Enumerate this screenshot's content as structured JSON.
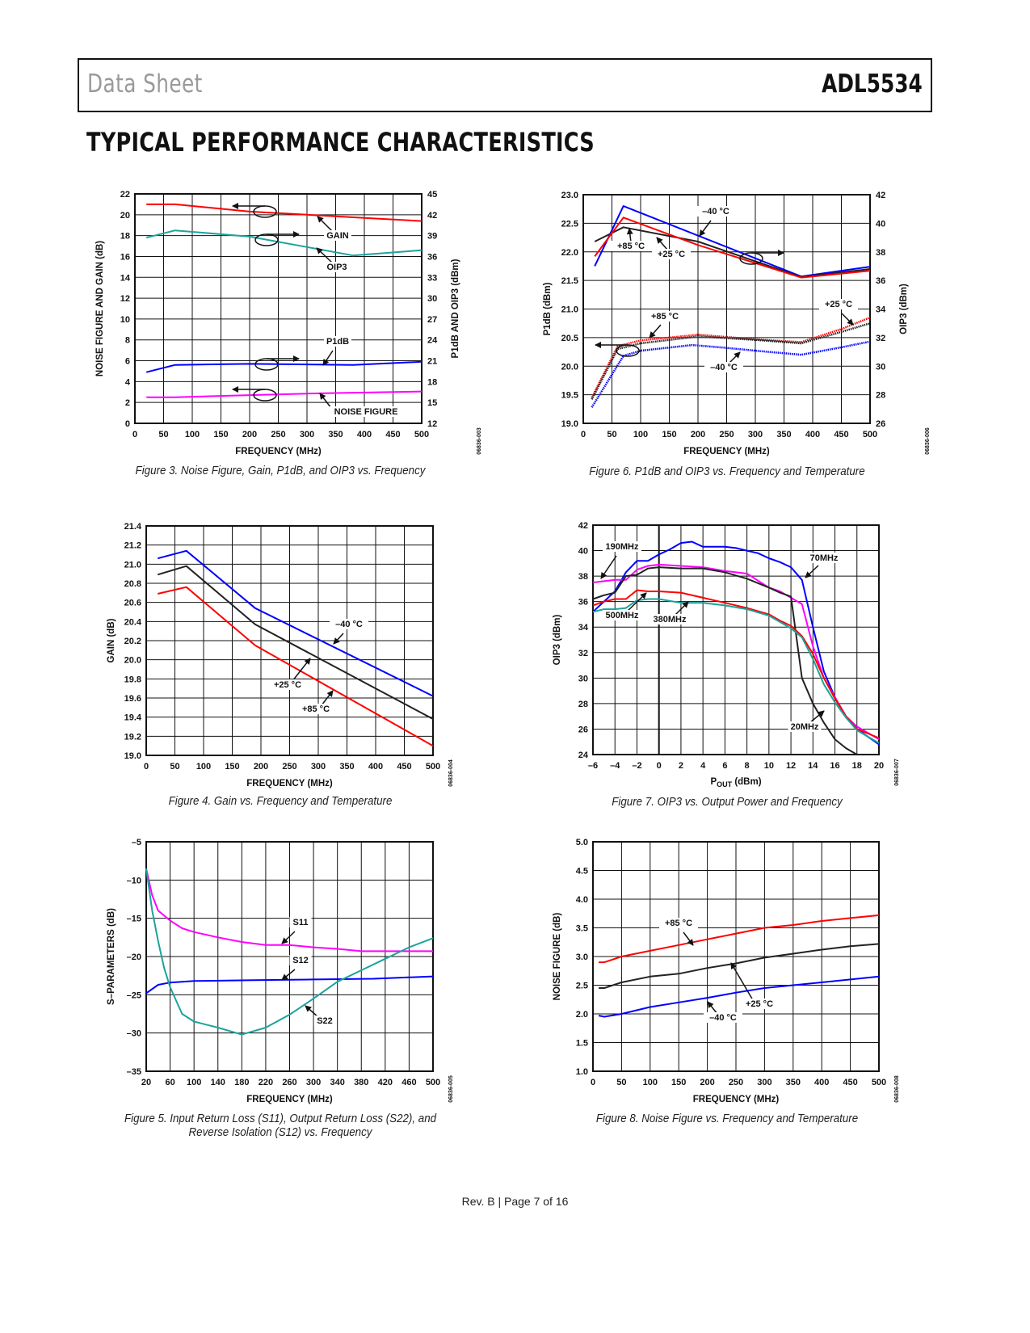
{
  "header": {
    "left": "Data Sheet",
    "right": "ADL5534"
  },
  "section_title": "TYPICAL PERFORMANCE CHARACTERISTICS",
  "footer": "Rev. B | Page 7 of 16",
  "colors": {
    "red": "#ff0000",
    "blue": "#0000ff",
    "teal": "#1ba39c",
    "magenta": "#ff00ff",
    "black": "#222222"
  },
  "chart_data": [
    {
      "type": "line",
      "caption": "Figure 3. Noise Figure, Gain, P1dB, and OIP3 vs. Frequency",
      "code": "06836-003",
      "xlabel": "FREQUENCY (MHz)",
      "ylabel": "NOISE FIGURE AND GAIN (dB)",
      "ylabel_right": "P1dB AND OIP3 (dBm)",
      "xlim": [
        0,
        500
      ],
      "ylim": [
        0,
        22
      ],
      "ylim_right": [
        12,
        45
      ],
      "xticks": [
        "0",
        "50",
        "100",
        "150",
        "200",
        "250",
        "300",
        "350",
        "400",
        "450",
        "500"
      ],
      "yticks": [
        "0",
        "2",
        "4",
        "6",
        "8",
        "10",
        "12",
        "14",
        "16",
        "18",
        "20",
        "22"
      ],
      "yticks_right": [
        "12",
        "15",
        "18",
        "21",
        "24",
        "27",
        "30",
        "33",
        "36",
        "39",
        "42",
        "45"
      ],
      "grid": true,
      "annotations": [
        "GAIN",
        "OIP3",
        "P1dB",
        "NOISE FIGURE"
      ],
      "series": [
        {
          "name": "GAIN",
          "axis": "left",
          "color": "#ff0000",
          "x": [
            20,
            70,
            200,
            300,
            400,
            500
          ],
          "y": [
            21,
            21,
            20.3,
            20,
            19.7,
            19.4
          ]
        },
        {
          "name": "OIP3",
          "axis": "right",
          "color": "#1ba39c",
          "x": [
            20,
            70,
            200,
            300,
            380,
            500
          ],
          "y": [
            38.7,
            39.75,
            38.85,
            37.35,
            36.15,
            36.9
          ]
        },
        {
          "name": "P1dB",
          "axis": "right",
          "color": "#0000ff",
          "x": [
            20,
            70,
            200,
            380,
            500
          ],
          "y": [
            19.35,
            20.4,
            20.55,
            20.4,
            20.85
          ]
        },
        {
          "name": "NOISE FIGURE",
          "axis": "left",
          "color": "#ff00ff",
          "x": [
            20,
            70,
            200,
            300,
            400,
            500
          ],
          "y": [
            2.5,
            2.5,
            2.7,
            2.85,
            2.95,
            3.05
          ]
        }
      ]
    },
    {
      "type": "line",
      "caption": "Figure 6. P1dB and OIP3 vs. Frequency and Temperature",
      "code": "06836-006",
      "xlabel": "FREQUENCY (MHz)",
      "ylabel": "P1dB (dBm)",
      "ylabel_right": "OIP3 (dBm)",
      "xlim": [
        0,
        500
      ],
      "ylim": [
        19,
        23
      ],
      "ylim_right": [
        26,
        42
      ],
      "xticks": [
        "0",
        "50",
        "100",
        "150",
        "200",
        "250",
        "300",
        "350",
        "400",
        "450",
        "500"
      ],
      "yticks": [
        "19.0",
        "19.5",
        "20.0",
        "20.5",
        "21.0",
        "21.5",
        "22.0",
        "22.5",
        "23.0"
      ],
      "yticks_right": [
        "26",
        "28",
        "30",
        "32",
        "34",
        "36",
        "38",
        "40",
        "42"
      ],
      "grid": true,
      "annotations": [
        "–40 °C",
        "+85 °C",
        "+25 °C",
        "+85 °C",
        "+25 °C",
        "–40 °C"
      ],
      "series": [
        {
          "name": "OIP3 –40°C",
          "axis": "right",
          "color": "#0000ff",
          "style": "solid",
          "x": [
            20,
            70,
            380,
            500
          ],
          "y": [
            37.0,
            41.2,
            36.28,
            36.96
          ]
        },
        {
          "name": "OIP3 +25°C",
          "axis": "right",
          "color": "#222222",
          "style": "solid",
          "x": [
            20,
            70,
            200,
            380,
            500
          ],
          "y": [
            38.72,
            39.72,
            38.72,
            36.24,
            36.8
          ]
        },
        {
          "name": "OIP3 +85°C",
          "axis": "right",
          "color": "#ff0000",
          "style": "solid",
          "x": [
            20,
            70,
            200,
            380,
            500
          ],
          "y": [
            37.68,
            40.4,
            38.48,
            36.2,
            36.68
          ]
        },
        {
          "name": "P1dB +85°C",
          "axis": "left",
          "color": "#ff0000",
          "style": "dotted",
          "x": [
            15,
            60,
            100,
            200,
            300,
            380,
            450,
            500
          ],
          "y": [
            19.45,
            20.35,
            20.45,
            20.55,
            20.47,
            20.42,
            20.65,
            20.85
          ]
        },
        {
          "name": "P1dB +25°C",
          "axis": "left",
          "color": "#222222",
          "style": "dotted",
          "x": [
            15,
            60,
            100,
            200,
            300,
            380,
            450,
            500
          ],
          "y": [
            19.42,
            20.3,
            20.4,
            20.52,
            20.46,
            20.4,
            20.6,
            20.75
          ]
        },
        {
          "name": "P1dB –40°C",
          "axis": "left",
          "color": "#0000ff",
          "style": "dotted",
          "x": [
            15,
            70,
            100,
            190,
            250,
            300,
            380,
            450,
            500
          ],
          "y": [
            19.28,
            20.18,
            20.27,
            20.37,
            20.32,
            20.27,
            20.2,
            20.33,
            20.43
          ]
        }
      ]
    },
    {
      "type": "line",
      "caption": "Figure 4. Gain vs. Frequency and Temperature",
      "code": "06836-004",
      "xlabel": "FREQUENCY (MHz)",
      "ylabel": "GAIN (dB)",
      "xlim": [
        0,
        500
      ],
      "ylim": [
        19.0,
        21.4
      ],
      "xticks": [
        "0",
        "50",
        "100",
        "150",
        "200",
        "250",
        "300",
        "350",
        "400",
        "450",
        "500"
      ],
      "yticks": [
        "19.0",
        "19.2",
        "19.4",
        "19.6",
        "19.8",
        "20.0",
        "20.2",
        "20.4",
        "20.6",
        "20.8",
        "21.0",
        "21.2",
        "21.4"
      ],
      "grid": true,
      "annotations": [
        "–40 °C",
        "+25 °C",
        "+85 °C"
      ],
      "series": [
        {
          "name": "–40°C",
          "color": "#0000ff",
          "x": [
            20,
            70,
            190,
            500
          ],
          "y": [
            21.06,
            21.14,
            20.54,
            19.62
          ]
        },
        {
          "name": "+25°C",
          "color": "#222222",
          "x": [
            20,
            70,
            190,
            500
          ],
          "y": [
            20.89,
            20.98,
            20.37,
            19.38
          ]
        },
        {
          "name": "+85°C",
          "color": "#ff0000",
          "x": [
            20,
            70,
            190,
            500
          ],
          "y": [
            20.69,
            20.76,
            20.15,
            19.1
          ]
        }
      ]
    },
    {
      "type": "line",
      "caption": "Figure 7. OIP3 vs. Output Power and Frequency",
      "code": "06836-007",
      "xlabel_parts": {
        "main": "P",
        "sub": "OUT",
        "unit": " (dBm)"
      },
      "ylabel": "OIP3 (dBm)",
      "xlim": [
        -6,
        20
      ],
      "ylim": [
        24,
        42
      ],
      "xticks": [
        "–6",
        "–4",
        "–2",
        "0",
        "2",
        "4",
        "6",
        "8",
        "10",
        "12",
        "14",
        "16",
        "18",
        "20"
      ],
      "yticks": [
        "24",
        "26",
        "28",
        "30",
        "32",
        "34",
        "36",
        "38",
        "40",
        "42"
      ],
      "grid": true,
      "annotations": [
        "190MHz",
        "70MHz",
        "500MHz",
        "380MHz",
        "20MHz"
      ],
      "series": [
        {
          "name": "70MHz",
          "color": "#0000ff",
          "x": [
            -6,
            -4,
            -3,
            -2,
            -1,
            0,
            1,
            2,
            3,
            4,
            6,
            7,
            8,
            9,
            10,
            11,
            12,
            13,
            14,
            15,
            16,
            17,
            18,
            20
          ],
          "y": [
            35.2,
            36.8,
            38.3,
            39.2,
            39.2,
            39.7,
            40.1,
            40.6,
            40.7,
            40.3,
            40.3,
            40.2,
            40.0,
            39.8,
            39.4,
            39.1,
            38.7,
            37.7,
            34,
            30.5,
            28.5,
            27,
            26,
            24.8
          ]
        },
        {
          "name": "190MHz",
          "color": "#ff00ff",
          "x": [
            -6,
            -5,
            -4,
            -3,
            -2,
            -1,
            0,
            2,
            4,
            6,
            8,
            10,
            11,
            12,
            13,
            14,
            15,
            16,
            17,
            18,
            20
          ],
          "y": [
            37.5,
            37.6,
            37.7,
            37.7,
            38.5,
            38.8,
            38.9,
            38.8,
            38.7,
            38.4,
            38.2,
            37.1,
            36.8,
            36.3,
            35.8,
            32.5,
            30,
            28.5,
            27,
            26.2,
            25.2
          ]
        },
        {
          "name": "20MHz",
          "color": "#222222",
          "x": [
            -6,
            -5,
            -4,
            -3,
            -2,
            -1,
            0,
            2,
            4,
            6,
            8,
            10,
            11,
            12,
            13,
            14,
            15,
            16,
            17,
            18
          ],
          "y": [
            36.2,
            36.5,
            36.7,
            38,
            38.1,
            38.6,
            38.7,
            38.6,
            38.6,
            38.3,
            37.8,
            37.1,
            36.7,
            36.4,
            30,
            28,
            26.5,
            25.2,
            24.5,
            24
          ]
        },
        {
          "name": "500MHz",
          "color": "#ff0000",
          "x": [
            -6,
            -5,
            -4,
            -3,
            -2,
            -1,
            0,
            2,
            4,
            6,
            8,
            10,
            11,
            12,
            13,
            14,
            15,
            16,
            17,
            18,
            20
          ],
          "y": [
            35.7,
            36.0,
            36.2,
            36.2,
            36.9,
            36.8,
            36.8,
            36.7,
            36.3,
            35.9,
            35.5,
            35.0,
            34.5,
            34.1,
            33.3,
            31.9,
            30,
            28.4,
            27,
            26,
            25.3
          ]
        },
        {
          "name": "380MHz",
          "color": "#1ba39c",
          "x": [
            -6,
            -5,
            -4,
            -3,
            -2,
            -1,
            0,
            2,
            4,
            6,
            8,
            10,
            11,
            12,
            13,
            14,
            15,
            16,
            17,
            18,
            20
          ],
          "y": [
            35.2,
            35.4,
            35.4,
            35.5,
            36.1,
            36.2,
            36.2,
            35.9,
            35.9,
            35.7,
            35.4,
            34.9,
            34.4,
            33.9,
            33.2,
            31.5,
            29.5,
            28.1,
            26.9,
            25.9,
            24.9
          ]
        }
      ]
    },
    {
      "type": "line",
      "caption": "Figure 5. Input Return Loss (S11), Output Return Loss (S22), and Reverse Isolation (S12) vs. Frequency",
      "code": "06836-005",
      "xlabel": "FREQUENCY (MHz)",
      "ylabel": "S–PARAMETERS (dB)",
      "xlim": [
        20,
        500
      ],
      "ylim": [
        -35,
        -5
      ],
      "xticks": [
        "20",
        "60",
        "100",
        "140",
        "180",
        "220",
        "260",
        "300",
        "340",
        "380",
        "420",
        "460",
        "500"
      ],
      "yticks": [
        "–35",
        "–30",
        "–25",
        "–20",
        "–15",
        "–10",
        "–5"
      ],
      "grid": true,
      "annotations": [
        "S11",
        "S12",
        "S22"
      ],
      "series": [
        {
          "name": "S11",
          "color": "#ff00ff",
          "x": [
            20,
            30,
            40,
            60,
            80,
            100,
            140,
            180,
            220,
            260,
            300,
            340,
            380,
            420,
            500
          ],
          "y": [
            -8.5,
            -12,
            -14,
            -15.3,
            -16.3,
            -16.8,
            -17.5,
            -18.1,
            -18.5,
            -18.5,
            -18.8,
            -19,
            -19.3,
            -19.3,
            -19.3
          ]
        },
        {
          "name": "S12",
          "color": "#0000ff",
          "x": [
            20,
            40,
            60,
            100,
            200,
            300,
            400,
            500
          ],
          "y": [
            -24.8,
            -23.7,
            -23.4,
            -23.2,
            -23.1,
            -23,
            -22.9,
            -22.6
          ]
        },
        {
          "name": "S22",
          "color": "#1ba39c",
          "x": [
            20,
            30,
            40,
            50,
            60,
            80,
            100,
            140,
            180,
            220,
            260,
            300,
            340,
            380,
            420,
            460,
            500
          ],
          "y": [
            -8.5,
            -14,
            -18,
            -21.5,
            -24,
            -27.5,
            -28.5,
            -29.3,
            -30.2,
            -29.3,
            -27.6,
            -25.5,
            -23.3,
            -21.8,
            -20.3,
            -18.8,
            -17.6
          ]
        }
      ]
    },
    {
      "type": "line",
      "caption": "Figure 8. Noise Figure vs. Frequency and Temperature",
      "code": "06836-008",
      "xlabel": "FREQUENCY (MHz)",
      "ylabel": "NOISE FIGURE (dB)",
      "xlim": [
        0,
        500
      ],
      "ylim": [
        1.0,
        5.0
      ],
      "xticks": [
        "0",
        "50",
        "100",
        "150",
        "200",
        "250",
        "300",
        "350",
        "400",
        "450",
        "500"
      ],
      "yticks": [
        "1.0",
        "1.5",
        "2.0",
        "2.5",
        "3.0",
        "3.5",
        "4.0",
        "4.5",
        "5.0"
      ],
      "grid": true,
      "annotations": [
        "+85 °C",
        "+25 °C",
        "–40 °C"
      ],
      "series": [
        {
          "name": "+85°C",
          "color": "#ff0000",
          "x": [
            10,
            20,
            50,
            100,
            150,
            200,
            250,
            300,
            350,
            400,
            450,
            500
          ],
          "y": [
            2.9,
            2.9,
            3.0,
            3.1,
            3.2,
            3.3,
            3.4,
            3.5,
            3.55,
            3.62,
            3.67,
            3.72
          ]
        },
        {
          "name": "+25°C",
          "color": "#222222",
          "x": [
            10,
            20,
            50,
            100,
            150,
            200,
            250,
            300,
            350,
            400,
            450,
            500
          ],
          "y": [
            2.45,
            2.45,
            2.55,
            2.65,
            2.7,
            2.8,
            2.88,
            2.98,
            3.05,
            3.12,
            3.18,
            3.22
          ]
        },
        {
          "name": "–40°C",
          "color": "#0000ff",
          "x": [
            10,
            20,
            50,
            100,
            150,
            200,
            250,
            300,
            350,
            400,
            450,
            500
          ],
          "y": [
            1.97,
            1.95,
            2.0,
            2.12,
            2.2,
            2.28,
            2.37,
            2.45,
            2.5,
            2.55,
            2.6,
            2.65
          ]
        }
      ]
    }
  ]
}
